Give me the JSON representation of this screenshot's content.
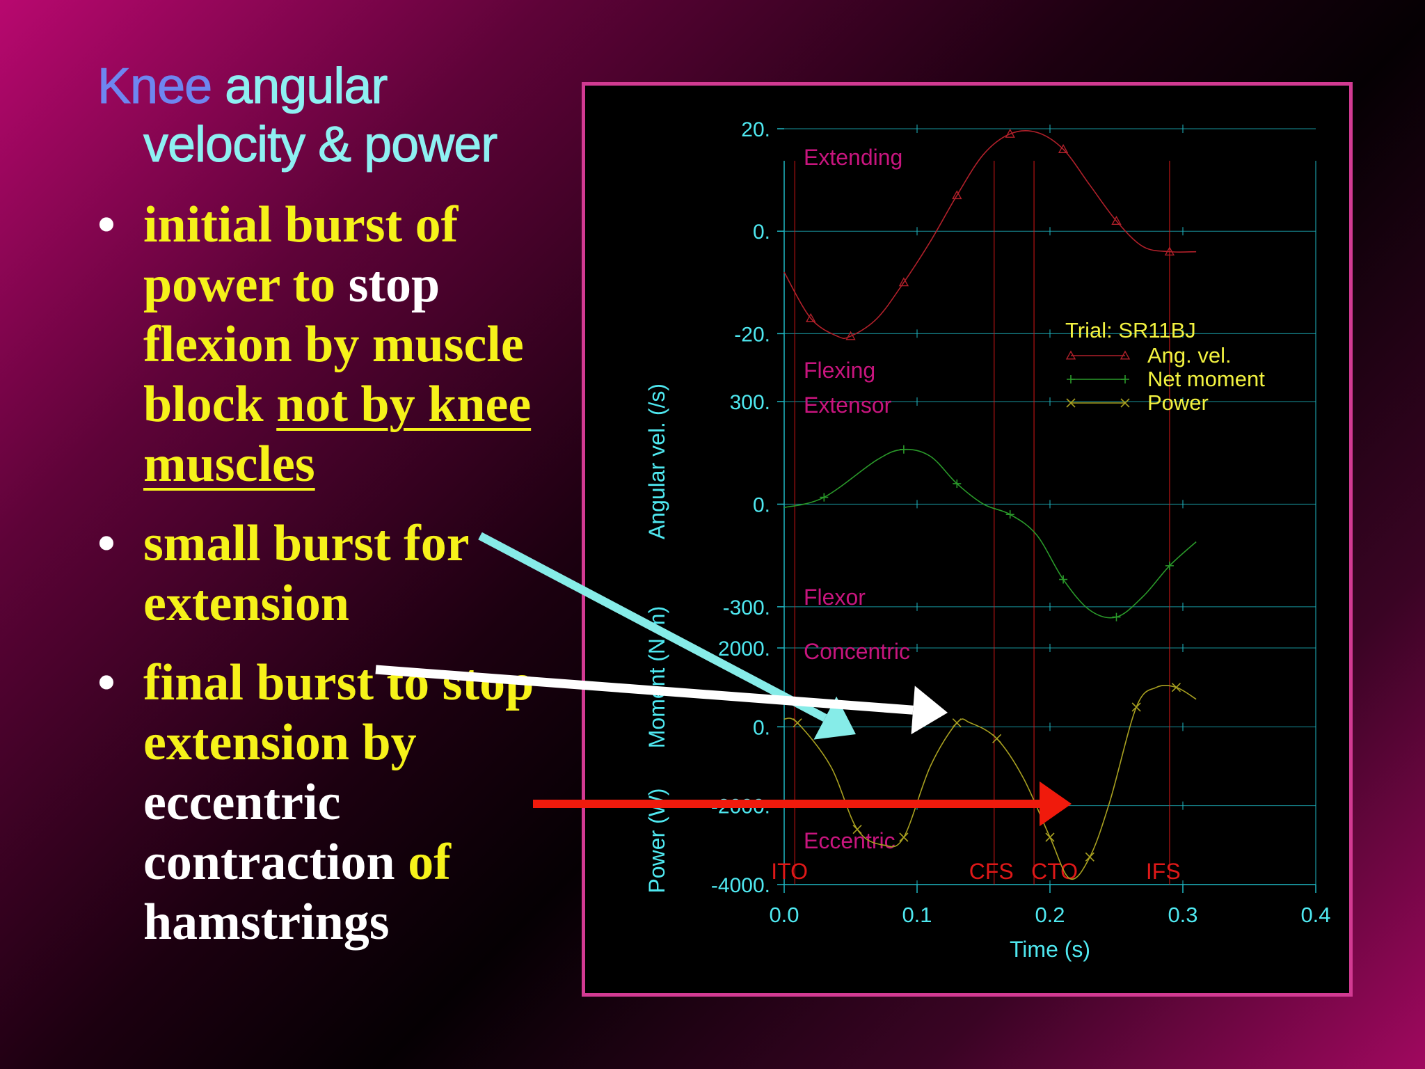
{
  "slide": {
    "title_word1": "Knee",
    "title_rest1": " angular",
    "title_line2": "velocity & power",
    "bullets": [
      {
        "segments": [
          {
            "text": "initial burst of power to ",
            "color": "yellow"
          },
          {
            "text": "stop",
            "color": "white"
          },
          {
            "text": " flexion by muscle block ",
            "color": "yellow"
          },
          {
            "text": "not by knee muscles",
            "color": "yellow",
            "underline": true
          }
        ]
      },
      {
        "segments": [
          {
            "text": "small burst for extension",
            "color": "yellow"
          }
        ]
      },
      {
        "segments": [
          {
            "text": "final burst to stop extension by ",
            "color": "yellow"
          },
          {
            "text": "eccentric contraction ",
            "color": "white"
          },
          {
            "text": "of",
            "color": "yellow"
          },
          {
            "text": " hamstrings",
            "color": "white"
          }
        ]
      }
    ]
  },
  "colors": {
    "title_knee": "#6e86f0",
    "title_text": "#8ef0f2",
    "bullet_yellow": "#f6f21a",
    "bullet_white": "#ffffff",
    "frame": "#d23a92",
    "axis": "#1fb8c4",
    "axis_text": "#4fe8f0",
    "region_label": "#c8157e",
    "event": "#e01818",
    "ang_vel": "#b0202a",
    "net_moment": "#2a9a2a",
    "power": "#a8a020",
    "legend_text": "#f2f240",
    "arrow_cyan": "#86ece8",
    "arrow_white": "#ffffff",
    "arrow_red": "#f01a0c"
  },
  "chart_data": {
    "type": "line",
    "xlabel": "Time (s)",
    "xlim": [
      0.0,
      0.4
    ],
    "xticks": [
      "0.0",
      "0.1",
      "0.2",
      "0.3",
      "0.4"
    ],
    "panels": [
      {
        "name": "angular_velocity",
        "ylabel": "Angular vel. (/s)",
        "ylim": [
          -30,
          20
        ],
        "yticks": [
          {
            "value": 20,
            "label": "20."
          },
          {
            "value": 0,
            "label": "0."
          },
          {
            "value": -20,
            "label": "-20."
          }
        ],
        "region_labels": [
          {
            "text": "Extending",
            "pos": "top"
          },
          {
            "text": "Flexing",
            "pos": "bottom"
          }
        ]
      },
      {
        "name": "net_moment",
        "ylabel": "Moment (N.m)",
        "ylim": [
          -400,
          300
        ],
        "yticks": [
          {
            "value": 300,
            "label": "300."
          },
          {
            "value": 0,
            "label": "0."
          },
          {
            "value": -300,
            "label": "-300."
          }
        ],
        "region_labels": [
          {
            "text": "Extensor",
            "pos": "top"
          },
          {
            "text": "Flexor",
            "pos": "bottom"
          }
        ]
      },
      {
        "name": "power",
        "ylabel": "Power (W)",
        "ylim": [
          -4000,
          2000
        ],
        "yticks": [
          {
            "value": 2000,
            "label": "2000."
          },
          {
            "value": 0,
            "label": "0."
          },
          {
            "value": -2000,
            "label": "-2000."
          },
          {
            "value": -4000,
            "label": "-4000."
          }
        ],
        "region_labels": [
          {
            "text": "Concentric",
            "pos": "top"
          },
          {
            "text": "Eccentric",
            "pos": "bottom"
          }
        ]
      }
    ],
    "events": [
      {
        "label": "ITO",
        "x": 0.008
      },
      {
        "label": "CFS",
        "x": 0.158
      },
      {
        "label": "CTO",
        "x": 0.188
      },
      {
        "label": "IFS",
        "x": 0.29
      }
    ],
    "legend": {
      "title": "Trial: SR11BJ",
      "entries": [
        "Ang. vel.",
        "Net moment",
        "Power"
      ],
      "placement": "right"
    },
    "series": [
      {
        "name": "Ang. vel.",
        "panel": "angular_velocity",
        "marker": "triangle",
        "x": [
          0.0,
          0.02,
          0.04,
          0.05,
          0.07,
          0.09,
          0.11,
          0.13,
          0.15,
          0.17,
          0.19,
          0.21,
          0.23,
          0.25,
          0.27,
          0.29,
          0.31
        ],
        "y": [
          -8,
          -17,
          -20.5,
          -20.5,
          -17,
          -10,
          -2,
          7,
          15,
          19,
          19.3,
          16,
          9,
          2,
          -3,
          -4,
          -4
        ]
      },
      {
        "name": "Net moment",
        "panel": "net_moment",
        "marker": "plus",
        "x": [
          0.0,
          0.03,
          0.07,
          0.09,
          0.11,
          0.13,
          0.15,
          0.17,
          0.19,
          0.21,
          0.23,
          0.25,
          0.27,
          0.29,
          0.31
        ],
        "y": [
          -10,
          20,
          130,
          160,
          140,
          60,
          0,
          -30,
          -90,
          -220,
          -310,
          -330,
          -270,
          -180,
          -110
        ]
      },
      {
        "name": "Power",
        "panel": "power",
        "marker": "x",
        "x": [
          0.0,
          0.01,
          0.035,
          0.055,
          0.075,
          0.09,
          0.11,
          0.13,
          0.14,
          0.16,
          0.18,
          0.2,
          0.215,
          0.23,
          0.245,
          0.265,
          0.28,
          0.295,
          0.31
        ],
        "y": [
          200,
          100,
          -1000,
          -2600,
          -3000,
          -2800,
          -1000,
          100,
          100,
          -300,
          -1300,
          -2800,
          -3850,
          -3300,
          -1900,
          500,
          1000,
          1000,
          700
        ]
      }
    ]
  }
}
